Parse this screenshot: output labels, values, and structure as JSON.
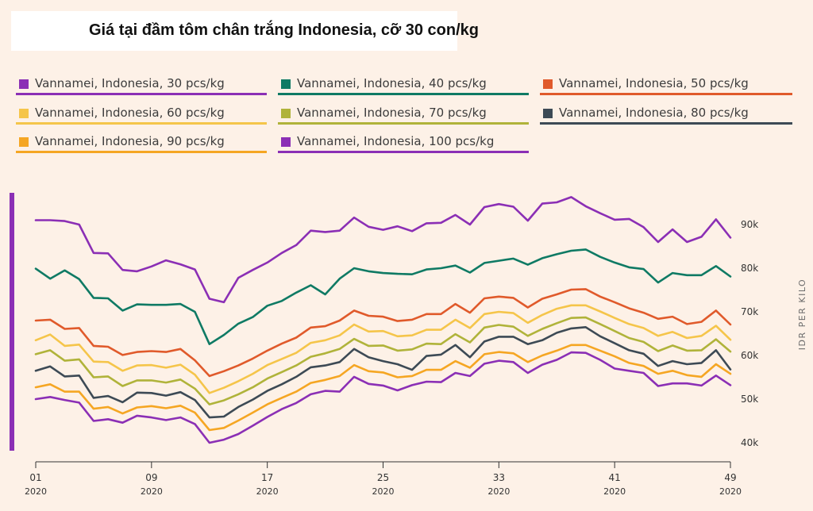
{
  "chart_data": {
    "type": "line",
    "title": "Giá tại đầm tôm chân trắng Indonesia, cỡ 30 con/kg",
    "ylabel": "IDR PER KILO",
    "xlabel": "",
    "ylim": [
      38000,
      97000
    ],
    "yticks": [
      {
        "value": 40000,
        "label": "40k"
      },
      {
        "value": 50000,
        "label": "50k"
      },
      {
        "value": 60000,
        "label": "60k"
      },
      {
        "value": 70000,
        "label": "70k"
      },
      {
        "value": 80000,
        "label": "80k"
      },
      {
        "value": 90000,
        "label": "90k"
      }
    ],
    "xticks": [
      {
        "week": 1,
        "label": "01",
        "year": "2020"
      },
      {
        "week": 9,
        "label": "09",
        "year": "2020"
      },
      {
        "week": 17,
        "label": "17",
        "year": "2020"
      },
      {
        "week": 25,
        "label": "25",
        "year": "2020"
      },
      {
        "week": 33,
        "label": "33",
        "year": "2020"
      },
      {
        "week": 41,
        "label": "41",
        "year": "2020"
      },
      {
        "week": 49,
        "label": "49",
        "year": "2020"
      }
    ],
    "x": [
      1,
      2,
      3,
      4,
      5,
      6,
      7,
      8,
      9,
      10,
      11,
      12,
      13,
      14,
      15,
      16,
      17,
      18,
      19,
      20,
      21,
      22,
      23,
      24,
      25,
      26,
      27,
      28,
      29,
      30,
      31,
      32,
      33,
      34,
      35,
      36,
      37,
      38,
      39,
      40,
      41,
      42,
      43,
      44,
      45,
      46,
      47,
      48,
      49
    ],
    "series": [
      {
        "name": "Vannamei, Indonesia, 30 pcs/kg",
        "color": "#8b2fb5",
        "values": [
          91000,
          91000,
          90800,
          90000,
          83500,
          83400,
          79600,
          79300,
          80400,
          81800,
          80900,
          79700,
          73000,
          72200,
          77800,
          79600,
          81300,
          83500,
          85300,
          88600,
          88300,
          88600,
          91600,
          89500,
          88800,
          89600,
          88500,
          90300,
          90400,
          92200,
          90000,
          94000,
          94700,
          94100,
          90900,
          94800,
          95100,
          96300,
          94200,
          92600,
          91100,
          91300,
          89400,
          86000,
          88900,
          86000,
          87200,
          91200,
          87000
        ]
      },
      {
        "name": "Vannamei, Indonesia, 40 pcs/kg",
        "color": "#0f7a64",
        "values": [
          79900,
          77600,
          79500,
          77500,
          73200,
          73100,
          70300,
          71700,
          71600,
          71600,
          71800,
          70000,
          62600,
          64700,
          67300,
          68800,
          71400,
          72500,
          74400,
          76100,
          74000,
          77600,
          80000,
          79300,
          78900,
          78700,
          78600,
          79700,
          80000,
          80600,
          79000,
          81200,
          81700,
          82200,
          80800,
          82300,
          83200,
          84000,
          84300,
          82600,
          81300,
          80200,
          79800,
          76700,
          78900,
          78400,
          78400,
          80500,
          78100
        ]
      },
      {
        "name": "Vannamei, Indonesia, 50 pcs/kg",
        "color": "#e05a2b",
        "values": [
          68000,
          68200,
          66100,
          66300,
          62200,
          62000,
          60100,
          60800,
          61000,
          60800,
          61500,
          58900,
          55300,
          56400,
          57700,
          59300,
          61100,
          62700,
          64100,
          66400,
          66700,
          68000,
          70300,
          69100,
          68900,
          67900,
          68200,
          69500,
          69500,
          71800,
          69800,
          73100,
          73500,
          73200,
          71000,
          73000,
          74000,
          75100,
          75200,
          73500,
          72200,
          70800,
          69800,
          68400,
          68900,
          67200,
          67700,
          70300,
          67100
        ]
      },
      {
        "name": "Vannamei, Indonesia, 60 pcs/kg",
        "color": "#f5c54a",
        "values": [
          63500,
          64800,
          62200,
          62500,
          58600,
          58500,
          56500,
          57700,
          57800,
          57200,
          57900,
          55600,
          51400,
          52600,
          54100,
          55800,
          57800,
          59200,
          60600,
          62900,
          63500,
          64600,
          67100,
          65500,
          65600,
          64400,
          64600,
          65900,
          65900,
          68200,
          66300,
          69500,
          70000,
          69700,
          67500,
          69300,
          70700,
          71500,
          71500,
          70100,
          68600,
          67200,
          66300,
          64500,
          65400,
          64000,
          64500,
          66800,
          63600
        ]
      },
      {
        "name": "Vannamei, Indonesia, 70 pcs/kg",
        "color": "#b0b33a",
        "values": [
          60300,
          61200,
          58800,
          59100,
          55000,
          55200,
          53000,
          54300,
          54300,
          53800,
          54500,
          52400,
          48800,
          49700,
          51100,
          52700,
          54700,
          56200,
          57700,
          59700,
          60500,
          61500,
          63800,
          62200,
          62300,
          61100,
          61400,
          62700,
          62600,
          64900,
          63000,
          66400,
          67000,
          66600,
          64500,
          66100,
          67400,
          68600,
          68700,
          67200,
          65600,
          64000,
          63100,
          61000,
          62300,
          61100,
          61200,
          63700,
          60900
        ]
      },
      {
        "name": "Vannamei, Indonesia, 80 pcs/kg",
        "color": "#3d4a55",
        "values": [
          56500,
          57500,
          55200,
          55400,
          50300,
          50700,
          49300,
          51500,
          51400,
          50800,
          51600,
          49800,
          45800,
          46000,
          48200,
          49900,
          51900,
          53400,
          55100,
          57300,
          57700,
          58500,
          61500,
          59600,
          58700,
          58000,
          56700,
          59900,
          60200,
          62400,
          59600,
          63200,
          64300,
          64300,
          62600,
          63500,
          65200,
          66200,
          66500,
          64400,
          62800,
          61200,
          60400,
          57600,
          58700,
          58000,
          58300,
          61200,
          56800
        ]
      },
      {
        "name": "Vannamei, Indonesia, 90 pcs/kg",
        "color": "#f5a623",
        "values": [
          52700,
          53400,
          51700,
          51700,
          47800,
          48200,
          46700,
          48100,
          48400,
          47900,
          48500,
          46900,
          42900,
          43400,
          45100,
          46900,
          48800,
          50300,
          51700,
          53700,
          54400,
          55300,
          57800,
          56400,
          56100,
          55000,
          55300,
          56700,
          56700,
          58700,
          57200,
          60300,
          60800,
          60500,
          58500,
          60000,
          61100,
          62400,
          62400,
          61100,
          59800,
          58300,
          57600,
          55800,
          56500,
          55500,
          55100,
          58000,
          55800
        ]
      },
      {
        "name": "Vannamei, Indonesia, 100 pcs/kg",
        "color": "#8b2fb5",
        "values": [
          50000,
          50500,
          49800,
          49200,
          45000,
          45400,
          44600,
          46200,
          45800,
          45200,
          45800,
          44300,
          40000,
          40700,
          42000,
          43900,
          45900,
          47700,
          49100,
          51100,
          51900,
          51700,
          55100,
          53500,
          53100,
          52000,
          53200,
          54000,
          53900,
          56000,
          55300,
          58100,
          58800,
          58500,
          56000,
          57900,
          59000,
          60700,
          60600,
          59000,
          57000,
          56500,
          56000,
          53000,
          53600,
          53600,
          53100,
          55400,
          53200
        ]
      }
    ]
  }
}
